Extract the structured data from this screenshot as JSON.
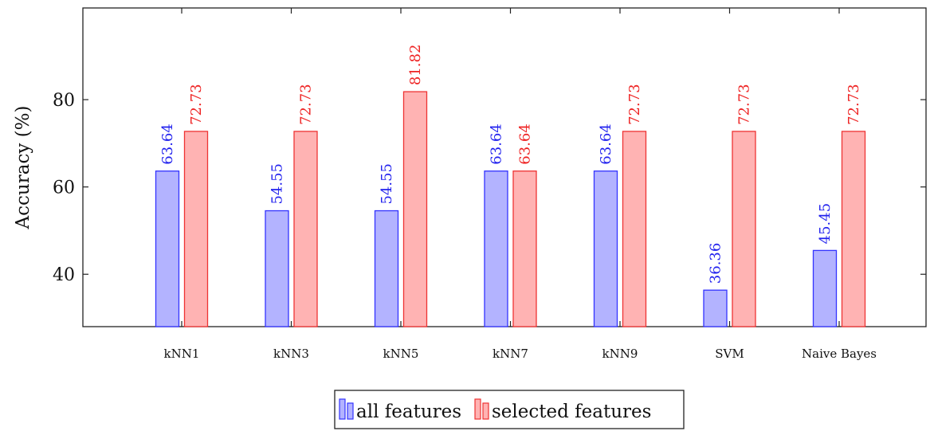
{
  "chart_data": {
    "type": "bar",
    "title": "",
    "xlabel": "",
    "ylabel": "Accuracy (%)",
    "ylim": [
      28,
      101
    ],
    "yticks": [
      40,
      60,
      80
    ],
    "categories": [
      "kNN1",
      "kNN3",
      "kNN5",
      "kNN7",
      "kNN9",
      "SVM",
      "Naive Bayes"
    ],
    "series": [
      {
        "name": "all features",
        "values": [
          63.64,
          54.55,
          54.55,
          63.64,
          63.64,
          36.36,
          45.45
        ],
        "labels": [
          "63.64",
          "54.55",
          "54.55",
          "63.64",
          "63.64",
          "36.36",
          "45.45"
        ],
        "fill": "#b3b3ff",
        "stroke": "#3333ff",
        "label_color": "#2222ee"
      },
      {
        "name": "selected features",
        "values": [
          72.73,
          72.73,
          81.82,
          63.64,
          72.73,
          72.73,
          72.73
        ],
        "labels": [
          "72.73",
          "72.73",
          "81.82",
          "63.64",
          "72.73",
          "72.73",
          "72.73"
        ],
        "fill": "#ffb3b3",
        "stroke": "#ee3333",
        "label_color": "#ee2222"
      }
    ],
    "grid": false,
    "legend_position": "bottom-center"
  }
}
